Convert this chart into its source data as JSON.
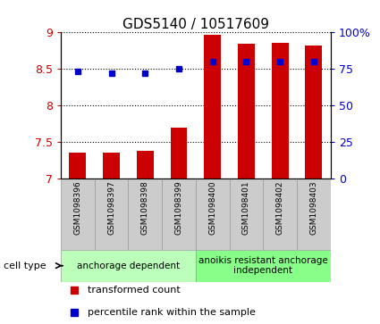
{
  "title": "GDS5140 / 10517609",
  "samples": [
    "GSM1098396",
    "GSM1098397",
    "GSM1098398",
    "GSM1098399",
    "GSM1098400",
    "GSM1098401",
    "GSM1098402",
    "GSM1098403"
  ],
  "bar_values": [
    7.35,
    7.35,
    7.37,
    7.69,
    8.97,
    8.85,
    8.86,
    8.82
  ],
  "percentile_values": [
    73,
    72,
    72,
    75,
    80,
    80,
    80,
    80
  ],
  "ylim_left": [
    7,
    9
  ],
  "ylim_right": [
    0,
    100
  ],
  "yticks_left": [
    7,
    7.5,
    8,
    8.5,
    9
  ],
  "yticks_right": [
    0,
    25,
    50,
    75,
    100
  ],
  "ytick_labels_left": [
    "7",
    "7.5",
    "8",
    "8.5",
    "9"
  ],
  "ytick_labels_right": [
    "0",
    "25",
    "50",
    "75",
    "100%"
  ],
  "bar_color": "#cc0000",
  "dot_color": "#0000cc",
  "group1_label": "anchorage dependent",
  "group2_label": "anoikis resistant anchorage\nindependent",
  "group1_indices": [
    0,
    1,
    2,
    3
  ],
  "group2_indices": [
    4,
    5,
    6,
    7
  ],
  "group1_color": "#bbffbb",
  "group2_color": "#88ff88",
  "cell_type_label": "cell type",
  "legend1": "transformed count",
  "legend2": "percentile rank within the sample",
  "plot_bg": "#ffffff"
}
